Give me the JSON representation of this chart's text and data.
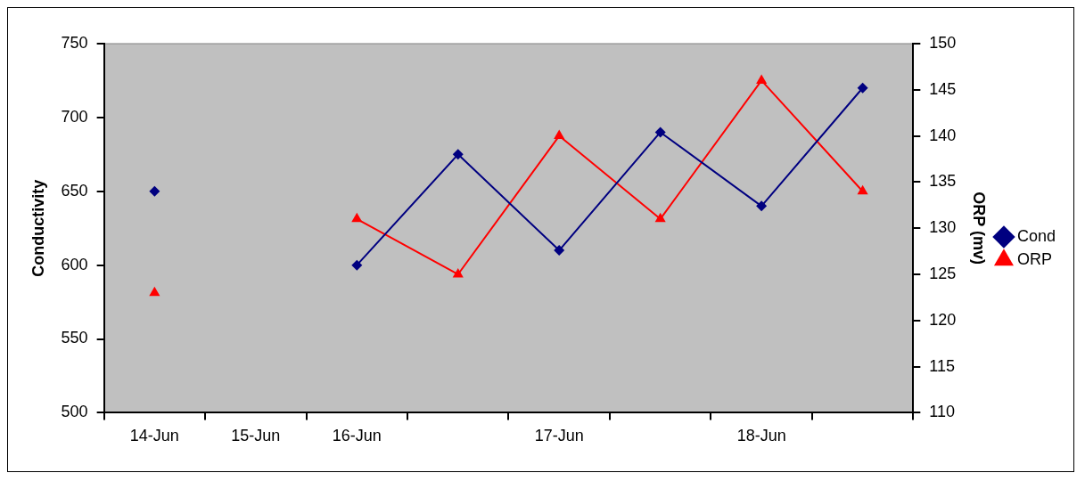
{
  "chart_data": {
    "type": "line",
    "categories": [
      "14-Jun",
      "15-Jun",
      "16-Jun",
      null,
      "17-Jun",
      null,
      "18-Jun",
      null
    ],
    "ylabel": "Conductivity",
    "y2label": "ORP (mv)",
    "ylim": [
      500,
      750
    ],
    "yticks": [
      500,
      550,
      600,
      650,
      700,
      750
    ],
    "y2lim": [
      110,
      150
    ],
    "y2ticks": [
      110,
      115,
      120,
      125,
      130,
      135,
      140,
      145,
      150
    ],
    "grid": false,
    "legend": "right",
    "series": [
      {
        "name": "Cond",
        "color": "#000080",
        "marker": "diamond",
        "values": [
          650,
          null,
          600,
          675,
          610,
          690,
          640,
          720
        ]
      },
      {
        "name": "ORP",
        "color": "#ff0000",
        "marker": "triangle",
        "axis": "y2",
        "values": [
          123,
          null,
          131,
          125,
          140,
          131,
          146,
          134
        ]
      }
    ]
  }
}
